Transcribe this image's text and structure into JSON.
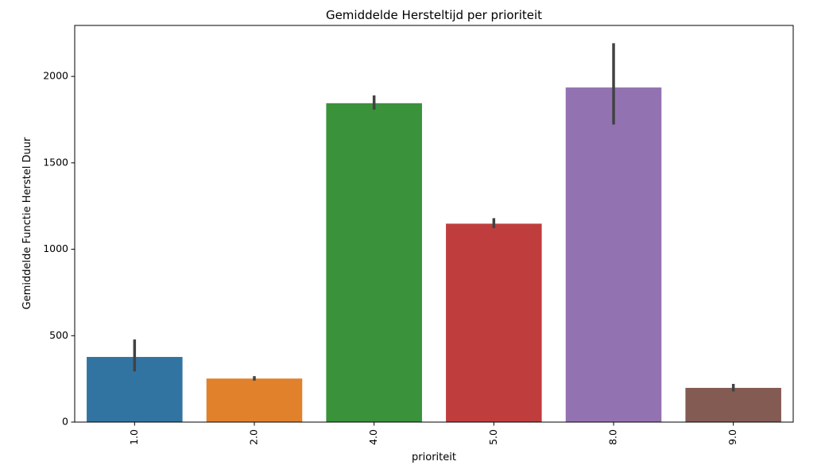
{
  "chart_data": {
    "type": "bar",
    "title": "Gemiddelde Hersteltijd per prioriteit",
    "xlabel": "prioriteit",
    "ylabel": "Gemiddelde Functie Herstel Duur",
    "categories": [
      "1.0",
      "2.0",
      "4.0",
      "5.0",
      "8.0",
      "9.0"
    ],
    "values": [
      377,
      252,
      1845,
      1148,
      1936,
      198
    ],
    "error_bars": [
      {
        "low": 293,
        "high": 478
      },
      {
        "low": 240,
        "high": 266
      },
      {
        "low": 1808,
        "high": 1890
      },
      {
        "low": 1122,
        "high": 1180
      },
      {
        "low": 1722,
        "high": 2192
      },
      {
        "low": 177,
        "high": 221
      }
    ],
    "colors": [
      "#3274a1",
      "#e1812c",
      "#3a923a",
      "#c03d3e",
      "#9372b2",
      "#845b53"
    ],
    "error_color": "#424242",
    "ylim": [
      0,
      2295
    ],
    "yticks": [
      0,
      500,
      1000,
      1500,
      2000
    ],
    "grid": false,
    "legend": "none"
  }
}
